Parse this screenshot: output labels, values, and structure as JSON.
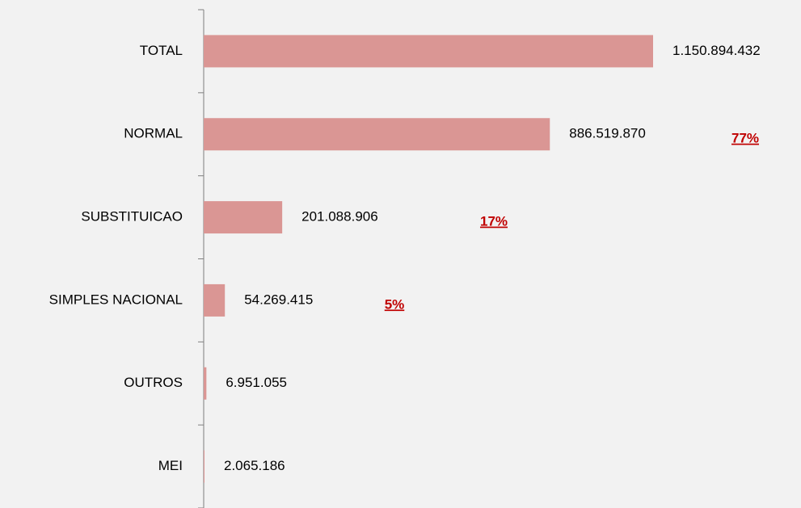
{
  "chart_data": {
    "type": "hbar",
    "categories": [
      "TOTAL",
      "NORMAL",
      "SUBSTITUICAO",
      "SIMPLES NACIONAL",
      "OUTROS",
      "MEI"
    ],
    "values": [
      1150894432,
      886519870,
      201088906,
      54269415,
      6951055,
      2065186
    ],
    "value_labels": [
      "1.150.894.432",
      "886.519.870",
      "201.088.906",
      "54.269.415",
      "6.951.055",
      "2.065.186"
    ],
    "color": "#da9694",
    "xlim": [
      0,
      1150894432
    ],
    "annotations": [
      {
        "category": "NORMAL",
        "text": "77%"
      },
      {
        "category": "SUBSTITUICAO",
        "text": "17%"
      },
      {
        "category": "SIMPLES NACIONAL",
        "text": "5%"
      }
    ]
  }
}
